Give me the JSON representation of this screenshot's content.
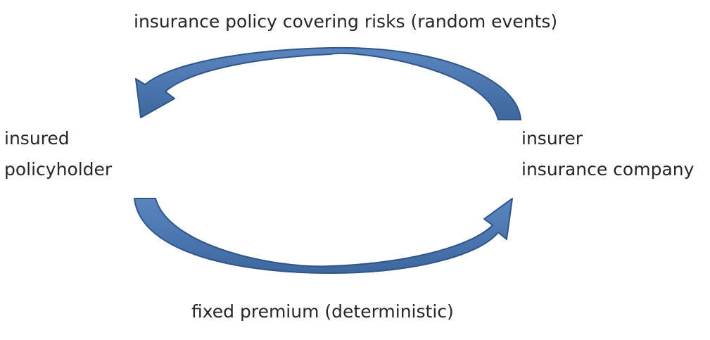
{
  "labels": {
    "top": "insurance policy covering risks (random events)",
    "bottom": "fixed premium (deterministic)",
    "left": {
      "line1": "insured",
      "line2": "policyholder"
    },
    "right": {
      "line1": "insurer",
      "line2": "insurance company"
    }
  },
  "colors": {
    "arrow_fill": "#4a74ad",
    "arrow_stroke": "#2f558a",
    "text": "#262626"
  }
}
